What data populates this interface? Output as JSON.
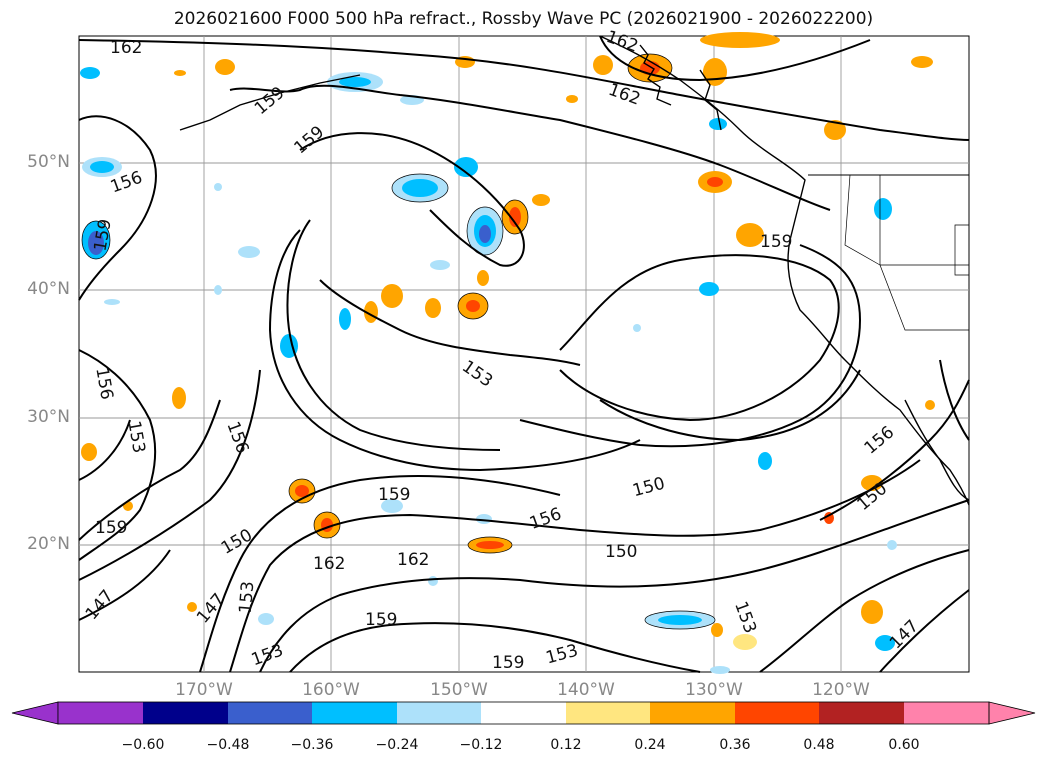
{
  "title": "2026021600 F000 500 hPa refract., Rossby Wave PC (2026021900 - 2026022200)",
  "map": {
    "lat_labels": [
      "50°N",
      "40°N",
      "30°N",
      "20°N"
    ],
    "lon_labels": [
      "170°W",
      "160°W",
      "150°W",
      "140°W",
      "130°W",
      "120°W"
    ],
    "contour_labels": [
      "162",
      "159",
      "159",
      "156",
      "159",
      "156",
      "153",
      "156",
      "153",
      "159",
      "150",
      "156",
      "150",
      "159",
      "162",
      "162",
      "150",
      "150",
      "159",
      "156",
      "147",
      "147",
      "153",
      "153",
      "159",
      "153",
      "153",
      "147",
      "162",
      "162",
      "159"
    ]
  },
  "colorbar": {
    "ticks": [
      "−0.60",
      "−0.48",
      "−0.36",
      "−0.24",
      "−0.12",
      "0.12",
      "0.24",
      "0.36",
      "0.48",
      "0.60"
    ],
    "colors": [
      "#9932CC",
      "#00008B",
      "#3A5FCD",
      "#00BFFF",
      "#ADE1FA",
      "#FFFFFF",
      "#FFE680",
      "#FFA500",
      "#FF4500",
      "#B22222",
      "#FF82AB"
    ]
  }
}
